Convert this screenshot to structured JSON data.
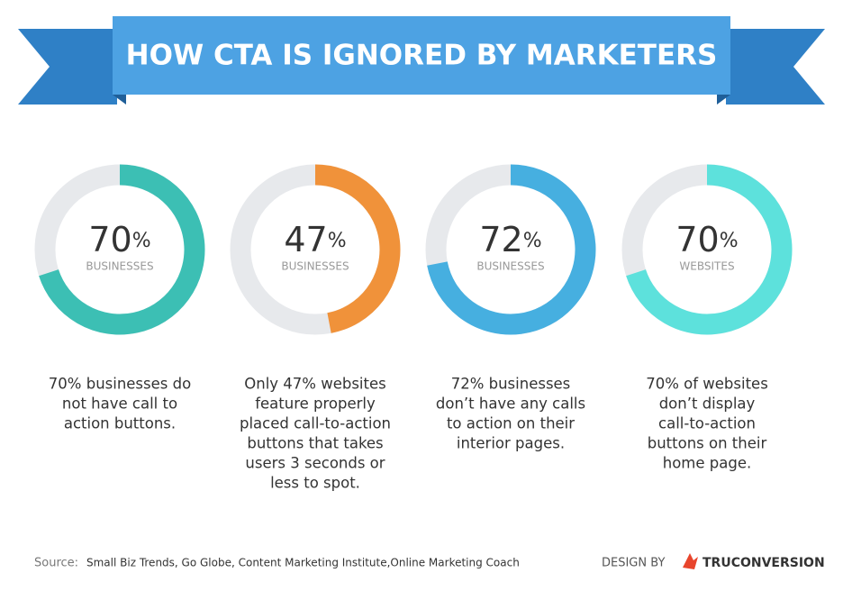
{
  "header": {
    "title": "HOW CTA IS IGNORED BY MARKETERS"
  },
  "chart_data": [
    {
      "type": "donut",
      "values": [
        70
      ],
      "unit": "%",
      "label": "BUSINESSES",
      "color": "#3cbfb4",
      "description": [
        "70% businesses do",
        "not have call to",
        "action buttons."
      ]
    },
    {
      "type": "donut",
      "values": [
        47
      ],
      "unit": "%",
      "label": "BUSINESSES",
      "color": "#f0923a",
      "description": [
        "Only 47% websites",
        "feature properly",
        "placed call-to-action",
        "buttons that takes",
        "users 3 seconds or",
        "less to spot."
      ]
    },
    {
      "type": "donut",
      "values": [
        72
      ],
      "unit": "%",
      "label": "BUSINESSES",
      "color": "#46afe0",
      "description": [
        "72% businesses",
        "don’t have any calls",
        "to action on their",
        "interior pages."
      ]
    },
    {
      "type": "donut",
      "values": [
        70
      ],
      "unit": "%",
      "label": "WEBSITES",
      "color": "#5de1dc",
      "description": [
        "70% of websites",
        "don’t display",
        "call-to-action",
        "buttons on their",
        "home page."
      ]
    }
  ],
  "footer": {
    "source_label": "Source:",
    "sources": "Small Biz Trends, Go Globe, Content Marketing Institute,Online Marketing Coach",
    "design_by": "DESIGN BY",
    "brand": "TRUCONVERSION"
  }
}
